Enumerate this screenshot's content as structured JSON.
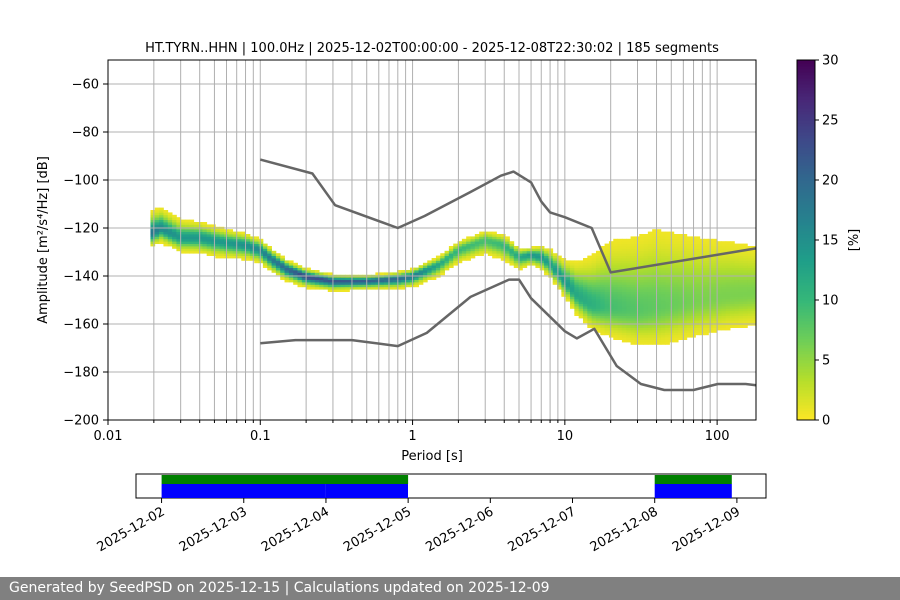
{
  "title": "HT.TYRN..HHN | 100.0Hz | 2025-12-02T00:00:00 - 2025-12-08T22:30:02 | 185 segments",
  "footer": "Generated by SeedPSD on 2025-12-15 | Calculations updated on 2025-12-09",
  "colors": {
    "grid": "#b0b0b0",
    "noise_model": "#666666",
    "coverage_data": "#0000ff",
    "coverage_psd": "#008000",
    "footer_bg": "#808080",
    "colormap": [
      "#fde725",
      "#b5de2b",
      "#6ece58",
      "#35b779",
      "#1f9e89",
      "#26828e",
      "#31688e",
      "#3e4989",
      "#482878",
      "#440154"
    ]
  },
  "chart_data": [
    {
      "type": "heatmap",
      "title": "HT.TYRN..HHN | 100.0Hz | 2025-12-02T00:00:00 - 2025-12-08T22:30:02 | 185 segments",
      "xlabel": "Period [s]",
      "ylabel": "Amplitude [m²/s⁴/Hz] [dB]",
      "x_scale": "log",
      "xlim": [
        0.01,
        180
      ],
      "ylim": [
        -200,
        -50
      ],
      "x_ticks": [
        0.01,
        0.1,
        1,
        10,
        100
      ],
      "x_tick_labels": [
        "0.01",
        "0.1",
        "1",
        "10",
        "100"
      ],
      "y_ticks": [
        -200,
        -180,
        -160,
        -140,
        -120,
        -100,
        -80,
        -60
      ],
      "y_tick_labels": [
        "−200",
        "−180",
        "−160",
        "−140",
        "−120",
        "−100",
        "−80",
        "−60"
      ],
      "grid": true,
      "colorbar": {
        "label": "[%]",
        "range": [
          0,
          30
        ],
        "ticks": [
          0,
          5,
          10,
          15,
          20,
          25,
          30
        ],
        "tick_labels": [
          "0",
          "5",
          "10",
          "15",
          "20",
          "25",
          "30"
        ],
        "colormap": "viridis_r"
      },
      "mode_curve": {
        "period": [
          0.02,
          0.022,
          0.03,
          0.04,
          0.06,
          0.08,
          0.1,
          0.12,
          0.15,
          0.2,
          0.3,
          0.5,
          0.8,
          1.0,
          1.5,
          2.0,
          3.0,
          4.0,
          5.0,
          6.0,
          7.0,
          8.0,
          10.0,
          12.0,
          15.0,
          20.0,
          30.0,
          50.0,
          80.0,
          120.0,
          180.0
        ],
        "db": [
          -122,
          -120,
          -124,
          -124,
          -126,
          -127,
          -129,
          -133,
          -137,
          -140,
          -142,
          -142,
          -141,
          -140,
          -135,
          -129,
          -125,
          -127,
          -132,
          -131,
          -132,
          -135,
          -142,
          -148,
          -152,
          -153,
          -154,
          -152,
          -150,
          -148,
          -147
        ],
        "peak_percent": [
          18,
          16,
          14,
          14,
          14,
          15,
          16,
          18,
          20,
          24,
          22,
          21,
          20,
          18,
          12,
          10,
          9,
          10,
          12,
          14,
          14,
          13,
          14,
          12,
          11,
          9,
          8,
          7,
          6,
          6,
          6
        ]
      },
      "spread_db": {
        "period": [
          0.02,
          0.05,
          0.1,
          0.2,
          0.5,
          1.0,
          2.0,
          4.0,
          6.0,
          10.0,
          20.0,
          40.0,
          80.0,
          180.0
        ],
        "below": [
          5,
          6,
          5,
          4,
          3,
          4,
          5,
          6,
          4,
          6,
          12,
          16,
          15,
          14
        ],
        "above": [
          12,
          8,
          6,
          4,
          3,
          4,
          5,
          6,
          4,
          12,
          40,
          48,
          40,
          30
        ]
      },
      "series": [
        {
          "period": [
            0.1,
            0.22,
            0.31,
            0.8,
            1.2,
            2.4,
            3.8,
            4.6,
            6.0,
            7.0,
            8.0,
            10.0,
            15.0,
            20.0,
            180.0
          ],
          "db": [
            -91.5,
            -97.3,
            -110.5,
            -120,
            -115,
            -105,
            -98.2,
            -96.5,
            -101,
            -109,
            -113.5,
            -115.5,
            -120.0,
            -138.5,
            -128.5
          ]
        },
        {
          "period": [
            0.1,
            0.17,
            0.4,
            0.8,
            1.24,
            2.4,
            4.3,
            5.0,
            6.0,
            10.0,
            12.0,
            15.6,
            21.9,
            31.6,
            45.0,
            70.0,
            101.0,
            154.0,
            180.0
          ],
          "db": [
            -168.0,
            -166.7,
            -166.7,
            -169.2,
            -163.7,
            -148.7,
            -141.5,
            -141.5,
            -149.3,
            -163.0,
            -166.0,
            -162.0,
            -177.5,
            -185.0,
            -187.5,
            -187.5,
            -185.0,
            -185.0,
            -185.5
          ]
        }
      ]
    },
    {
      "type": "bar",
      "title": "",
      "x_tick_labels": [
        "2025-12-02",
        "2025-12-03",
        "2025-12-04",
        "2025-12-05",
        "2025-12-06",
        "2025-12-07",
        "2025-12-08",
        "2025-12-09"
      ],
      "xlim": [
        "2025-12-01T16:32",
        "2025-12-09T08:30"
      ],
      "series": [
        {
          "intervals": [
            [
              "2025-12-02T00:00",
              "2025-12-04T23:59"
            ],
            [
              "2025-12-08T00:00",
              "2025-12-08T22:30"
            ]
          ]
        },
        {
          "intervals": [
            [
              "2025-12-02T00:00",
              "2025-12-03T23:59"
            ],
            [
              "2025-12-04T00:00",
              "2025-12-04T23:59"
            ],
            [
              "2025-12-08T00:00",
              "2025-12-08T22:30"
            ]
          ]
        }
      ]
    }
  ]
}
